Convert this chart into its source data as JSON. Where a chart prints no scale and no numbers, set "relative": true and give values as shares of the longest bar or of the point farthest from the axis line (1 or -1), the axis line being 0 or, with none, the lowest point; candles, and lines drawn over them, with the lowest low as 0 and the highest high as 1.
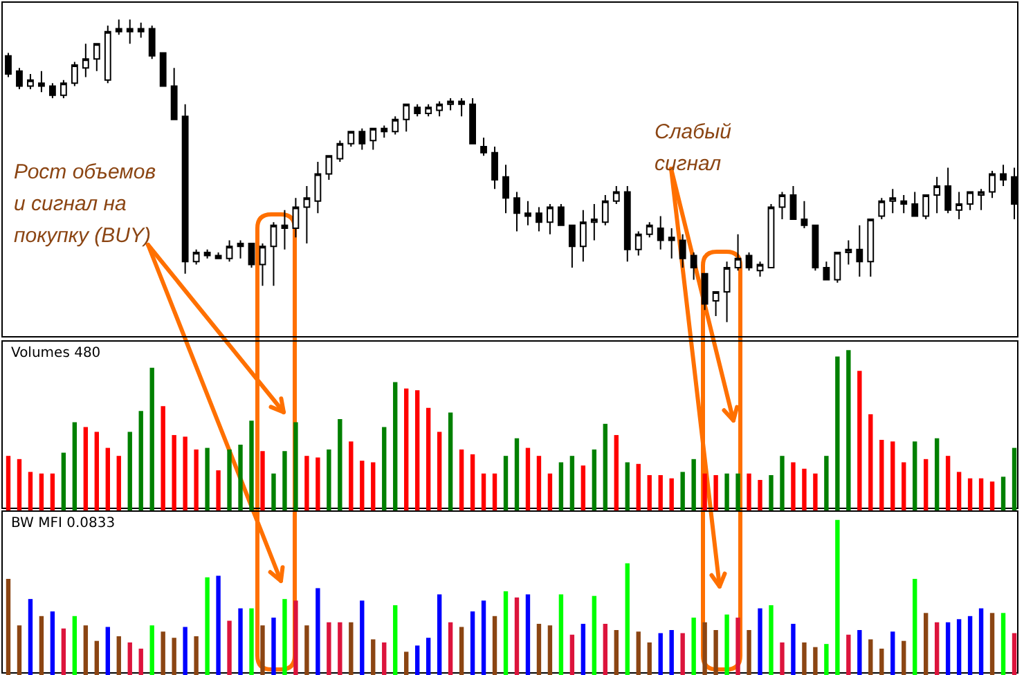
{
  "chart_data": [
    {
      "type": "candlestick",
      "relative": true,
      "annotations": [
        "Рост объемов и сигнал на покупку (BUY)",
        "Слабый сигнал"
      ],
      "categories": [
        null,
        null,
        null,
        null,
        null,
        null,
        null,
        null,
        null,
        null,
        null,
        null,
        null,
        null,
        null,
        null,
        null,
        null,
        null,
        null,
        null,
        null,
        null,
        null,
        null,
        null,
        null,
        null,
        null,
        null,
        null,
        null,
        null,
        null,
        null,
        null,
        null,
        null,
        null,
        null,
        null,
        null,
        null,
        null,
        null,
        null,
        null,
        null,
        null,
        null,
        null,
        null,
        null,
        null,
        null,
        null,
        null,
        null,
        null,
        null,
        null,
        null,
        null,
        null,
        null,
        null,
        null,
        null,
        null,
        null,
        null,
        null,
        null,
        null,
        null,
        null,
        null,
        null,
        null,
        null,
        null,
        null,
        null,
        null,
        null,
        null,
        null,
        null,
        null,
        null,
        null,
        null
      ],
      "ohlc": [
        [
          0.88,
          0.89,
          0.81,
          0.82
        ],
        [
          0.83,
          0.84,
          0.77,
          0.78
        ],
        [
          0.78,
          0.82,
          0.77,
          0.8
        ],
        [
          0.79,
          0.83,
          0.76,
          0.78
        ],
        [
          0.78,
          0.79,
          0.74,
          0.75
        ],
        [
          0.75,
          0.8,
          0.74,
          0.79
        ],
        [
          0.79,
          0.86,
          0.78,
          0.85
        ],
        [
          0.84,
          0.92,
          0.81,
          0.87
        ],
        [
          0.87,
          0.92,
          0.83,
          0.92
        ],
        [
          0.8,
          0.98,
          0.79,
          0.96
        ],
        [
          0.97,
          1,
          0.95,
          0.96
        ],
        [
          0.97,
          1,
          0.92,
          0.96
        ],
        [
          0.97,
          0.99,
          0.94,
          0.96
        ],
        [
          0.97,
          0.98,
          0.87,
          0.88
        ],
        [
          0.89,
          0.89,
          0.78,
          0.78
        ],
        [
          0.78,
          0.84,
          0.67,
          0.67
        ],
        [
          0.68,
          0.72,
          0.16,
          0.2
        ],
        [
          0.2,
          0.24,
          0.19,
          0.23
        ],
        [
          0.23,
          0.24,
          0.21,
          0.22
        ],
        [
          0.22,
          0.23,
          0.21,
          0.21
        ],
        [
          0.21,
          0.27,
          0.2,
          0.25
        ],
        [
          0.26,
          0.27,
          0.21,
          0.25
        ],
        [
          0.26,
          0.26,
          0.18,
          0.19
        ],
        [
          0.19,
          0.26,
          0.12,
          0.25
        ],
        [
          0.25,
          0.33,
          0.12,
          0.32
        ],
        [
          0.32,
          0.37,
          0.24,
          0.31
        ],
        [
          0.31,
          0.41,
          0.28,
          0.38
        ],
        [
          0.38,
          0.45,
          0.26,
          0.41
        ],
        [
          0.4,
          0.53,
          0.36,
          0.49
        ],
        [
          0.49,
          0.55,
          0.47,
          0.55
        ],
        [
          0.54,
          0.6,
          0.53,
          0.59
        ],
        [
          0.59,
          0.63,
          0.58,
          0.63
        ],
        [
          0.63,
          0.64,
          0.57,
          0.59
        ],
        [
          0.6,
          0.64,
          0.57,
          0.64
        ],
        [
          0.64,
          0.65,
          0.61,
          0.63
        ],
        [
          0.63,
          0.68,
          0.62,
          0.67
        ],
        [
          0.67,
          0.72,
          0.63,
          0.72
        ],
        [
          0.71,
          0.72,
          0.68,
          0.69
        ],
        [
          0.69,
          0.72,
          0.68,
          0.71
        ],
        [
          0.7,
          0.73,
          0.68,
          0.72
        ],
        [
          0.72,
          0.74,
          0.7,
          0.73
        ],
        [
          0.73,
          0.74,
          0.68,
          0.72
        ],
        [
          0.72,
          0.74,
          0.59,
          0.59
        ],
        [
          0.58,
          0.61,
          0.55,
          0.56
        ],
        [
          0.56,
          0.58,
          0.44,
          0.47
        ],
        [
          0.48,
          0.52,
          0.36,
          0.41
        ],
        [
          0.41,
          0.43,
          0.3,
          0.36
        ],
        [
          0.36,
          0.4,
          0.32,
          0.35
        ],
        [
          0.36,
          0.38,
          0.3,
          0.33
        ],
        [
          0.33,
          0.39,
          0.29,
          0.38
        ],
        [
          0.38,
          0.39,
          0.32,
          0.32
        ],
        [
          0.32,
          0.32,
          0.18,
          0.25
        ],
        [
          0.25,
          0.37,
          0.2,
          0.33
        ],
        [
          0.33,
          0.39,
          0.27,
          0.34
        ],
        [
          0.33,
          0.42,
          0.32,
          0.4
        ],
        [
          0.4,
          0.45,
          0.39,
          0.43
        ],
        [
          0.43,
          0.45,
          0.2,
          0.24
        ],
        [
          0.24,
          0.3,
          0.22,
          0.29
        ],
        [
          0.29,
          0.33,
          0.28,
          0.32
        ],
        [
          0.31,
          0.35,
          0.24,
          0.27
        ],
        [
          0.28,
          0.31,
          0.21,
          0.27
        ],
        [
          0.27,
          0.29,
          0.18,
          0.21
        ],
        [
          0.22,
          0.23,
          0.14,
          0.18
        ],
        [
          0.16,
          0.16,
          0.04,
          0.06
        ],
        [
          0.07,
          0.1,
          0.02,
          0.1
        ],
        [
          0.1,
          0.2,
          0,
          0.18
        ],
        [
          0.18,
          0.29,
          0.17,
          0.21
        ],
        [
          0.22,
          0.23,
          0.17,
          0.18
        ],
        [
          0.17,
          0.2,
          0.15,
          0.19
        ],
        [
          0.18,
          0.39,
          0.18,
          0.38
        ],
        [
          0.38,
          0.43,
          0.34,
          0.42
        ],
        [
          0.42,
          0.45,
          0.34,
          0.34
        ],
        [
          0.34,
          0.4,
          0.31,
          0.32
        ],
        [
          0.32,
          0.32,
          0.17,
          0.18
        ],
        [
          0.18,
          0.2,
          0.14,
          0.14
        ],
        [
          0.14,
          0.23,
          0.13,
          0.23
        ],
        [
          0.23,
          0.27,
          0.19,
          0.24
        ],
        [
          0.24,
          0.32,
          0.15,
          0.2
        ],
        [
          0.2,
          0.34,
          0.15,
          0.34
        ],
        [
          0.35,
          0.41,
          0.34,
          0.4
        ],
        [
          0.4,
          0.44,
          0.36,
          0.41
        ],
        [
          0.4,
          0.42,
          0.36,
          0.39
        ],
        [
          0.39,
          0.43,
          0.35,
          0.35
        ],
        [
          0.35,
          0.42,
          0.34,
          0.42
        ],
        [
          0.42,
          0.48,
          0.36,
          0.45
        ],
        [
          0.45,
          0.51,
          0.36,
          0.37
        ],
        [
          0.37,
          0.43,
          0.34,
          0.39
        ],
        [
          0.39,
          0.43,
          0.37,
          0.43
        ],
        [
          0.42,
          0.44,
          0.37,
          0.43
        ],
        [
          0.43,
          0.5,
          0.41,
          0.49
        ],
        [
          0.49,
          0.52,
          0.45,
          0.47
        ],
        [
          0.48,
          0.51,
          0.34,
          0.39
        ]
      ]
    },
    {
      "type": "bar",
      "title": "Volumes 480",
      "relative": true,
      "categories": [
        null,
        null,
        null,
        null,
        null,
        null,
        null,
        null,
        null,
        null,
        null,
        null,
        null,
        null,
        null,
        null,
        null,
        null,
        null,
        null,
        null,
        null,
        null,
        null,
        null,
        null,
        null,
        null,
        null,
        null,
        null,
        null,
        null,
        null,
        null,
        null,
        null,
        null,
        null,
        null,
        null,
        null,
        null,
        null,
        null,
        null,
        null,
        null,
        null,
        null,
        null,
        null,
        null,
        null,
        null,
        null,
        null,
        null,
        null,
        null,
        null,
        null,
        null,
        null,
        null,
        null,
        null,
        null,
        null,
        null,
        null,
        null,
        null,
        null,
        null,
        null,
        null,
        null,
        null,
        null,
        null,
        null,
        null,
        null,
        null,
        null,
        null,
        null,
        null,
        null,
        null,
        null
      ],
      "values": [
        0.34,
        0.32,
        0.24,
        0.23,
        0.23,
        0.36,
        0.55,
        0.52,
        0.49,
        0.39,
        0.34,
        0.49,
        0.62,
        0.89,
        0.65,
        0.47,
        0.46,
        0.38,
        0.39,
        0.25,
        0.38,
        0.41,
        0.56,
        0.37,
        0.23,
        0.37,
        0.55,
        0.34,
        0.33,
        0.38,
        0.57,
        0.43,
        0.31,
        0.3,
        0.52,
        0.8,
        0.76,
        0.75,
        0.64,
        0.49,
        0.61,
        0.38,
        0.35,
        0.23,
        0.23,
        0.34,
        0.45,
        0.39,
        0.34,
        0.23,
        0.3,
        0.34,
        0.28,
        0.38,
        0.54,
        0.47,
        0.3,
        0.29,
        0.22,
        0.22,
        0.2,
        0.24,
        0.32,
        0.23,
        0.22,
        0.23,
        0.23,
        0.23,
        0.19,
        0.22,
        0.34,
        0.3,
        0.26,
        0.23,
        0.34,
        0.96,
        1,
        0.87,
        0.6,
        0.44,
        0.43,
        0.3,
        0.43,
        0.32,
        0.45,
        0.34,
        0.24,
        0.2,
        0.2,
        0.18,
        0.21,
        0.39
      ],
      "colors": [
        "#ff0000",
        "#ff0000",
        "#ff0000",
        "#ff0000",
        "#ff0000",
        "#008000",
        "#008000",
        "#ff0000",
        "#ff0000",
        "#ff0000",
        "#ff0000",
        "#008000",
        "#008000",
        "#008000",
        "#ff0000",
        "#ff0000",
        "#ff0000",
        "#ff0000",
        "#008000",
        "#ff0000",
        "#008000",
        "#008000",
        "#008000",
        "#ff0000",
        "#008000",
        "#008000",
        "#008000",
        "#ff0000",
        "#ff0000",
        "#008000",
        "#008000",
        "#ff0000",
        "#ff0000",
        "#ff0000",
        "#008000",
        "#008000",
        "#ff0000",
        "#ff0000",
        "#ff0000",
        "#ff0000",
        "#008000",
        "#ff0000",
        "#ff0000",
        "#ff0000",
        "#ff0000",
        "#008000",
        "#008000",
        "#ff0000",
        "#ff0000",
        "#ff0000",
        "#008000",
        "#008000",
        "#ff0000",
        "#008000",
        "#008000",
        "#ff0000",
        "#008000",
        "#ff0000",
        "#ff0000",
        "#ff0000",
        "#ff0000",
        "#008000",
        "#008000",
        "#ff0000",
        "#ff0000",
        "#008000",
        "#008000",
        "#ff0000",
        "#ff0000",
        "#008000",
        "#008000",
        "#ff0000",
        "#ff0000",
        "#ff0000",
        "#008000",
        "#008000",
        "#008000",
        "#ff0000",
        "#ff0000",
        "#ff0000",
        "#ff0000",
        "#ff0000",
        "#008000",
        "#ff0000",
        "#008000",
        "#ff0000",
        "#ff0000",
        "#ff0000",
        "#ff0000",
        "#ff0000",
        "#008000",
        "#008000"
      ]
    },
    {
      "type": "bar",
      "title": "BW MFI 0.0833",
      "relative": true,
      "categories": [
        null,
        null,
        null,
        null,
        null,
        null,
        null,
        null,
        null,
        null,
        null,
        null,
        null,
        null,
        null,
        null,
        null,
        null,
        null,
        null,
        null,
        null,
        null,
        null,
        null,
        null,
        null,
        null,
        null,
        null,
        null,
        null,
        null,
        null,
        null,
        null,
        null,
        null,
        null,
        null,
        null,
        null,
        null,
        null,
        null,
        null,
        null,
        null,
        null,
        null,
        null,
        null,
        null,
        null,
        null,
        null,
        null,
        null,
        null,
        null,
        null,
        null,
        null,
        null,
        null,
        null,
        null,
        null,
        null,
        null,
        null,
        null,
        null,
        null,
        null,
        null,
        null,
        null,
        null,
        null,
        null,
        null,
        null,
        null,
        null,
        null,
        null,
        null,
        null,
        null,
        null,
        null
      ],
      "values": [
        0.62,
        0.32,
        0.49,
        0.38,
        0.41,
        0.3,
        0.38,
        0.32,
        0.22,
        0.31,
        0.25,
        0.21,
        0.17,
        0.32,
        0.28,
        0.24,
        0.31,
        0.25,
        0.63,
        0.64,
        0.35,
        0.43,
        0.43,
        0.32,
        0.37,
        0.49,
        0.48,
        0.32,
        0.56,
        0.34,
        0.34,
        0.34,
        0.48,
        0.23,
        0.21,
        0.45,
        0.15,
        0.19,
        0.24,
        0.52,
        0.34,
        0.31,
        0.41,
        0.48,
        0.38,
        0.54,
        0.5,
        0.52,
        0.33,
        0.32,
        0.52,
        0.26,
        0.33,
        0.51,
        0.33,
        0.29,
        0.72,
        0.28,
        0.21,
        0.27,
        0.29,
        0.27,
        0.37,
        0.34,
        0.29,
        0.39,
        0.37,
        0.29,
        0.43,
        0.45,
        0.21,
        0.33,
        0.21,
        0.18,
        0.2,
        1,
        0.26,
        0.29,
        0.23,
        0.17,
        0.28,
        0.22,
        0.62,
        0.4,
        0.34,
        0.34,
        0.36,
        0.38,
        0.43,
        0.4,
        0.4,
        0.27
      ],
      "colors": [
        "#8b4513",
        "#8b4513",
        "#0000ff",
        "#8b4513",
        "#0000ff",
        "#dc143c",
        "#00ff00",
        "#8b4513",
        "#8b4513",
        "#0000ff",
        "#8b4513",
        "#dc143c",
        "#dc143c",
        "#00ff00",
        "#8b4513",
        "#8b4513",
        "#0000ff",
        "#8b4513",
        "#00ff00",
        "#0000ff",
        "#dc143c",
        "#0000ff",
        "#00ff00",
        "#8b4513",
        "#0000ff",
        "#00ff00",
        "#dc143c",
        "#8b4513",
        "#0000ff",
        "#dc143c",
        "#dc143c",
        "#8b4513",
        "#0000ff",
        "#8b4513",
        "#dc143c",
        "#00ff00",
        "#8b4513",
        "#0000ff",
        "#0000ff",
        "#0000ff",
        "#dc143c",
        "#8b4513",
        "#0000ff",
        "#0000ff",
        "#8b4513",
        "#00ff00",
        "#dc143c",
        "#0000ff",
        "#8b4513",
        "#8b4513",
        "#00ff00",
        "#dc143c",
        "#0000ff",
        "#00ff00",
        "#dc143c",
        "#8b4513",
        "#00ff00",
        "#8b4513",
        "#8b4513",
        "#0000ff",
        "#0000ff",
        "#dc143c",
        "#00ff00",
        "#8b4513",
        "#8b4513",
        "#00ff00",
        "#dc143c",
        "#8b4513",
        "#0000ff",
        "#00ff00",
        "#dc143c",
        "#0000ff",
        "#8b4513",
        "#8b4513",
        "#00ff00",
        "#00ff00",
        "#dc143c",
        "#0000ff",
        "#8b4513",
        "#8b4513",
        "#0000ff",
        "#8b4513",
        "#00ff00",
        "#8b4513",
        "#dc143c",
        "#0000ff",
        "#0000ff",
        "#0000ff",
        "#0000ff",
        "#8b4513",
        "#00ff00",
        "#dc143c"
      ]
    }
  ]
}
